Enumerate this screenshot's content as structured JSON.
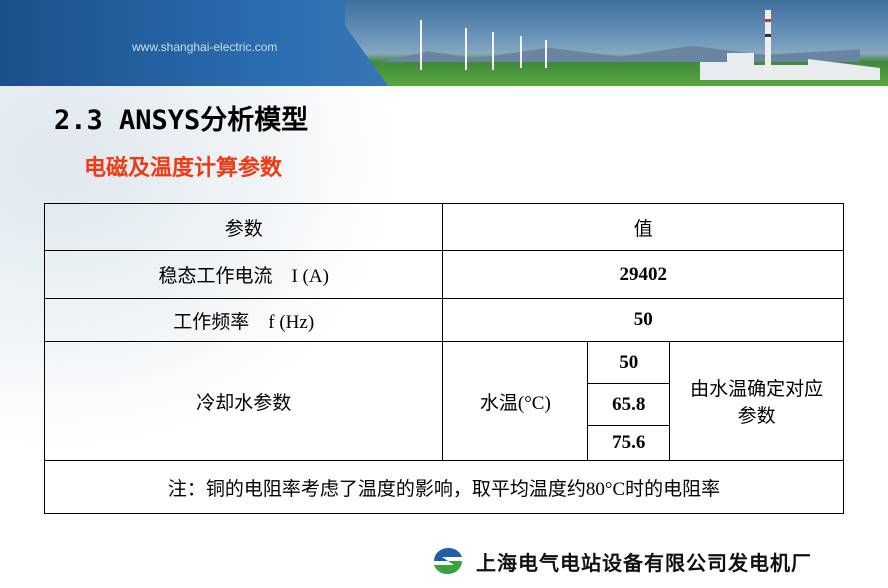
{
  "header": {
    "url": "www.shanghai-electric.com"
  },
  "slide": {
    "title": "2.3 ANSYS分析模型",
    "subtitle": "电磁及温度计算参数"
  },
  "table": {
    "headers": [
      "参数",
      "值"
    ],
    "rows": [
      {
        "param": "稳态工作电流　I (A)",
        "value": "29402"
      },
      {
        "param": "工作频率　f (Hz)",
        "value": "50"
      }
    ],
    "cooling": {
      "param": "冷却水参数",
      "label": "水温(°C)",
      "temps": [
        "50",
        "65.8",
        "75.6"
      ],
      "note": "由水温确定对应参数"
    },
    "footnote": "注：铜的电阻率考虑了温度的影响，取平均温度约80°C时的电阻率"
  },
  "footer": {
    "company": "上海电气电站设备有限公司发电机厂",
    "logo_colors": [
      "#1f5fa8",
      "#3aa33a"
    ]
  }
}
